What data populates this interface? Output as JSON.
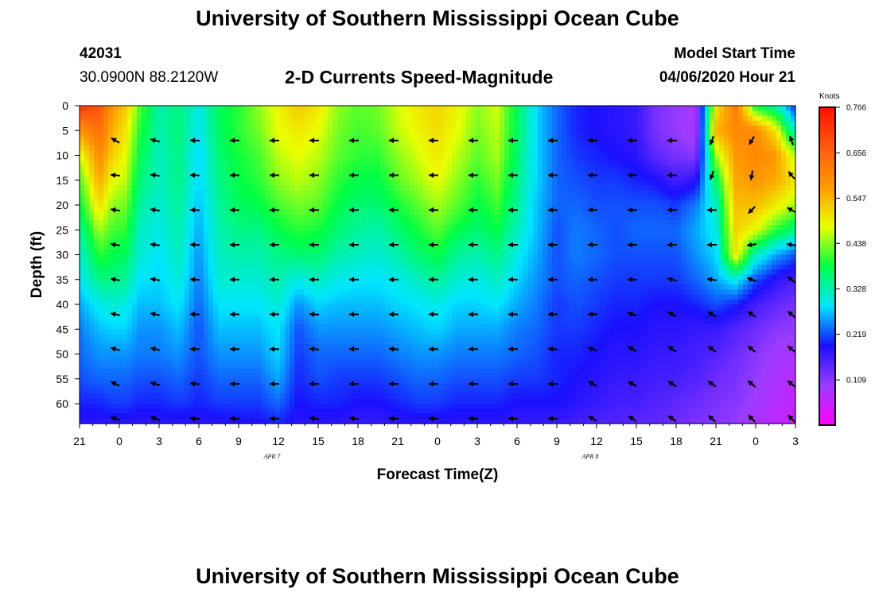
{
  "header": {
    "title": "University of Southern Mississippi Ocean Cube",
    "station_id": "42031",
    "coordinates": "30.0900N 88.2120W",
    "subtitle": "2-D Currents Speed-Magnitude",
    "model_label": "Model Start Time",
    "model_time": "04/06/2020 Hour 21"
  },
  "footer": {
    "title": "University of Southern Mississippi Ocean Cube"
  },
  "chart_data": {
    "type": "heatmap",
    "title": "2-D Currents Speed-Magnitude",
    "xlabel": "Forecast Time(Z)",
    "ylabel": "Depth (ft)",
    "x_ticks": [
      "21",
      "0",
      "3",
      "6",
      "9",
      "12",
      "15",
      "18",
      "21",
      "0",
      "3",
      "6",
      "9",
      "12",
      "15",
      "18",
      "21",
      "0",
      "3"
    ],
    "x_hours": [
      0,
      3,
      6,
      9,
      12,
      15,
      18,
      21,
      24,
      27,
      30,
      33,
      36,
      39,
      42,
      45,
      48,
      51,
      54
    ],
    "x_range": [
      0,
      54
    ],
    "date_labels": [
      {
        "text": "APR 7",
        "hour": 15
      },
      {
        "text": "APR 8",
        "hour": 39
      }
    ],
    "y_ticks": [
      0,
      5,
      10,
      15,
      20,
      25,
      30,
      35,
      40,
      45,
      50,
      55,
      60
    ],
    "y_range": [
      0,
      64
    ],
    "colorbar": {
      "unit": "Knots",
      "range": [
        0.0,
        0.766
      ],
      "tick_values": [
        0.766,
        0.656,
        0.547,
        0.438,
        0.328,
        0.219,
        0.109
      ],
      "tick_labels": [
        "0.766",
        "0.656",
        "0.547",
        "0.438",
        "0.328",
        "0.219",
        "0.109"
      ],
      "colors": [
        "#ff00ff",
        "#9b3cff",
        "#1a10ff",
        "#00e5ff",
        "#00ff44",
        "#eaff00",
        "#ff9a00",
        "#ff5a10",
        "#ff1000"
      ]
    },
    "speed_grid": {
      "hours": [
        0,
        1.5,
        2.5,
        3.5,
        4.5,
        6,
        7.5,
        9,
        10.5,
        12,
        13.5,
        15,
        16.5,
        18,
        19.5,
        21,
        22.5,
        24,
        25.5,
        27,
        28.5,
        30,
        31.5,
        33,
        34.5,
        36,
        37.5,
        39,
        40.5,
        42,
        43.5,
        45,
        46.5,
        48,
        49.5,
        51,
        52.5,
        54
      ],
      "depths": [
        0,
        5,
        10,
        15,
        20,
        25,
        30,
        35,
        40,
        45,
        50,
        55,
        60,
        64
      ],
      "values": [
        [
          0.72,
          0.58,
          0.47,
          0.41,
          0.38,
          0.34,
          0.31,
          0.29,
          0.26,
          0.24,
          0.23,
          0.22,
          0.2,
          0.18
        ],
        [
          0.68,
          0.64,
          0.6,
          0.56,
          0.51,
          0.45,
          0.4,
          0.35,
          0.3,
          0.27,
          0.25,
          0.23,
          0.2,
          0.18
        ],
        [
          0.58,
          0.55,
          0.52,
          0.48,
          0.44,
          0.41,
          0.38,
          0.35,
          0.31,
          0.28,
          0.25,
          0.23,
          0.21,
          0.18
        ],
        [
          0.53,
          0.5,
          0.48,
          0.46,
          0.43,
          0.4,
          0.37,
          0.34,
          0.3,
          0.28,
          0.25,
          0.23,
          0.21,
          0.18
        ],
        [
          0.42,
          0.4,
          0.38,
          0.36,
          0.34,
          0.32,
          0.31,
          0.29,
          0.27,
          0.25,
          0.24,
          0.22,
          0.2,
          0.18
        ],
        [
          0.33,
          0.33,
          0.32,
          0.32,
          0.31,
          0.3,
          0.29,
          0.28,
          0.27,
          0.25,
          0.24,
          0.22,
          0.2,
          0.18
        ],
        [
          0.35,
          0.36,
          0.35,
          0.35,
          0.34,
          0.33,
          0.32,
          0.31,
          0.29,
          0.27,
          0.25,
          0.23,
          0.21,
          0.18
        ],
        [
          0.3,
          0.29,
          0.28,
          0.28,
          0.27,
          0.26,
          0.25,
          0.24,
          0.23,
          0.22,
          0.22,
          0.21,
          0.2,
          0.18
        ],
        [
          0.37,
          0.37,
          0.36,
          0.35,
          0.34,
          0.33,
          0.32,
          0.31,
          0.29,
          0.27,
          0.25,
          0.23,
          0.21,
          0.18
        ],
        [
          0.4,
          0.4,
          0.39,
          0.38,
          0.37,
          0.35,
          0.33,
          0.31,
          0.29,
          0.27,
          0.25,
          0.23,
          0.21,
          0.19
        ],
        [
          0.44,
          0.43,
          0.41,
          0.4,
          0.38,
          0.35,
          0.33,
          0.31,
          0.29,
          0.27,
          0.25,
          0.23,
          0.21,
          0.19
        ],
        [
          0.49,
          0.48,
          0.46,
          0.44,
          0.41,
          0.38,
          0.35,
          0.33,
          0.31,
          0.29,
          0.28,
          0.26,
          0.23,
          0.2
        ],
        [
          0.53,
          0.5,
          0.48,
          0.46,
          0.43,
          0.4,
          0.36,
          0.3,
          0.25,
          0.22,
          0.21,
          0.2,
          0.19,
          0.18
        ],
        [
          0.5,
          0.48,
          0.46,
          0.44,
          0.42,
          0.39,
          0.36,
          0.32,
          0.28,
          0.25,
          0.23,
          0.22,
          0.2,
          0.18
        ],
        [
          0.44,
          0.43,
          0.42,
          0.4,
          0.38,
          0.36,
          0.33,
          0.3,
          0.27,
          0.25,
          0.23,
          0.21,
          0.2,
          0.18
        ],
        [
          0.42,
          0.41,
          0.4,
          0.38,
          0.36,
          0.34,
          0.32,
          0.29,
          0.27,
          0.25,
          0.23,
          0.21,
          0.19,
          0.17
        ],
        [
          0.43,
          0.42,
          0.4,
          0.38,
          0.36,
          0.33,
          0.31,
          0.29,
          0.27,
          0.25,
          0.23,
          0.21,
          0.19,
          0.17
        ],
        [
          0.47,
          0.46,
          0.44,
          0.42,
          0.39,
          0.36,
          0.33,
          0.3,
          0.28,
          0.26,
          0.24,
          0.22,
          0.2,
          0.18
        ],
        [
          0.5,
          0.49,
          0.47,
          0.45,
          0.42,
          0.39,
          0.36,
          0.32,
          0.29,
          0.27,
          0.25,
          0.23,
          0.21,
          0.18
        ],
        [
          0.52,
          0.51,
          0.5,
          0.48,
          0.45,
          0.42,
          0.38,
          0.34,
          0.3,
          0.28,
          0.25,
          0.23,
          0.21,
          0.18
        ],
        [
          0.49,
          0.48,
          0.46,
          0.44,
          0.42,
          0.38,
          0.34,
          0.31,
          0.28,
          0.26,
          0.24,
          0.22,
          0.2,
          0.18
        ],
        [
          0.44,
          0.43,
          0.42,
          0.4,
          0.38,
          0.36,
          0.33,
          0.3,
          0.28,
          0.26,
          0.24,
          0.22,
          0.2,
          0.18
        ],
        [
          0.47,
          0.46,
          0.45,
          0.43,
          0.41,
          0.38,
          0.35,
          0.32,
          0.29,
          0.26,
          0.24,
          0.22,
          0.2,
          0.18
        ],
        [
          0.37,
          0.37,
          0.36,
          0.35,
          0.34,
          0.32,
          0.3,
          0.28,
          0.26,
          0.24,
          0.23,
          0.21,
          0.19,
          0.17
        ],
        [
          0.28,
          0.28,
          0.28,
          0.28,
          0.27,
          0.27,
          0.26,
          0.25,
          0.24,
          0.23,
          0.22,
          0.21,
          0.19,
          0.17
        ],
        [
          0.23,
          0.23,
          0.23,
          0.23,
          0.23,
          0.22,
          0.22,
          0.22,
          0.21,
          0.21,
          0.2,
          0.2,
          0.19,
          0.17
        ],
        [
          0.2,
          0.2,
          0.21,
          0.22,
          0.23,
          0.24,
          0.24,
          0.23,
          0.22,
          0.21,
          0.2,
          0.19,
          0.18,
          0.16
        ],
        [
          0.19,
          0.19,
          0.2,
          0.21,
          0.22,
          0.23,
          0.23,
          0.22,
          0.21,
          0.2,
          0.19,
          0.18,
          0.17,
          0.15
        ],
        [
          0.18,
          0.18,
          0.19,
          0.21,
          0.22,
          0.22,
          0.22,
          0.21,
          0.2,
          0.19,
          0.18,
          0.17,
          0.16,
          0.15
        ],
        [
          0.17,
          0.17,
          0.18,
          0.2,
          0.22,
          0.23,
          0.22,
          0.21,
          0.2,
          0.19,
          0.18,
          0.17,
          0.16,
          0.14
        ],
        [
          0.12,
          0.12,
          0.14,
          0.19,
          0.22,
          0.23,
          0.22,
          0.21,
          0.19,
          0.18,
          0.17,
          0.16,
          0.15,
          0.14
        ],
        [
          0.1,
          0.1,
          0.12,
          0.16,
          0.21,
          0.23,
          0.22,
          0.21,
          0.19,
          0.18,
          0.17,
          0.16,
          0.14,
          0.13
        ],
        [
          0.08,
          0.08,
          0.11,
          0.18,
          0.24,
          0.26,
          0.25,
          0.23,
          0.2,
          0.17,
          0.16,
          0.15,
          0.13,
          0.12
        ],
        [
          0.5,
          0.55,
          0.45,
          0.37,
          0.32,
          0.3,
          0.28,
          0.26,
          0.22,
          0.17,
          0.15,
          0.13,
          0.12,
          0.11
        ],
        [
          0.62,
          0.6,
          0.58,
          0.56,
          0.54,
          0.52,
          0.5,
          0.3,
          0.2,
          0.15,
          0.13,
          0.12,
          0.11,
          0.1
        ],
        [
          0.38,
          0.6,
          0.6,
          0.58,
          0.54,
          0.48,
          0.32,
          0.22,
          0.16,
          0.13,
          0.11,
          0.1,
          0.09,
          0.08
        ],
        [
          0.33,
          0.5,
          0.58,
          0.56,
          0.5,
          0.4,
          0.26,
          0.18,
          0.14,
          0.11,
          0.09,
          0.08,
          0.07,
          0.06
        ],
        [
          0.2,
          0.3,
          0.45,
          0.5,
          0.45,
          0.35,
          0.22,
          0.16,
          0.12,
          0.1,
          0.08,
          0.07,
          0.06,
          0.05
        ]
      ]
    },
    "vectors": {
      "hours": [
        3,
        6,
        9,
        12,
        15,
        18,
        21,
        24,
        27,
        30,
        33,
        36,
        39,
        42,
        45,
        48,
        51,
        54
      ],
      "depths": [
        7,
        14,
        21,
        28,
        35,
        42,
        49,
        56,
        63
      ],
      "directions_deg": [
        [
          300,
          275,
          278,
          280,
          280,
          282,
          285,
          295,
          290
        ],
        [
          285,
          278,
          278,
          278,
          280,
          282,
          282,
          285,
          290
        ],
        [
          272,
          272,
          272,
          272,
          272,
          272,
          272,
          275,
          275
        ],
        [
          270,
          270,
          270,
          270,
          270,
          270,
          270,
          270,
          270
        ],
        [
          270,
          270,
          270,
          270,
          270,
          270,
          270,
          270,
          270
        ],
        [
          270,
          270,
          270,
          270,
          270,
          275,
          275,
          270,
          280
        ],
        [
          270,
          270,
          270,
          270,
          270,
          270,
          270,
          270,
          280
        ],
        [
          270,
          270,
          270,
          270,
          270,
          270,
          275,
          270,
          270
        ],
        [
          270,
          270,
          270,
          270,
          270,
          270,
          270,
          270,
          270
        ],
        [
          270,
          270,
          270,
          270,
          270,
          270,
          270,
          270,
          270
        ],
        [
          270,
          270,
          270,
          270,
          270,
          270,
          270,
          270,
          270
        ],
        [
          270,
          270,
          270,
          270,
          270,
          270,
          275,
          270,
          270
        ],
        [
          270,
          270,
          270,
          270,
          270,
          270,
          290,
          300,
          300
        ],
        [
          270,
          270,
          270,
          270,
          270,
          290,
          300,
          300,
          305
        ],
        [
          270,
          270,
          270,
          270,
          285,
          300,
          305,
          305,
          305
        ],
        [
          200,
          200,
          270,
          270,
          280,
          300,
          305,
          305,
          310
        ],
        [
          210,
          190,
          225,
          260,
          290,
          305,
          310,
          310,
          315
        ],
        [
          340,
          320,
          300,
          280,
          310,
          310,
          310,
          310,
          315
        ]
      ]
    }
  }
}
